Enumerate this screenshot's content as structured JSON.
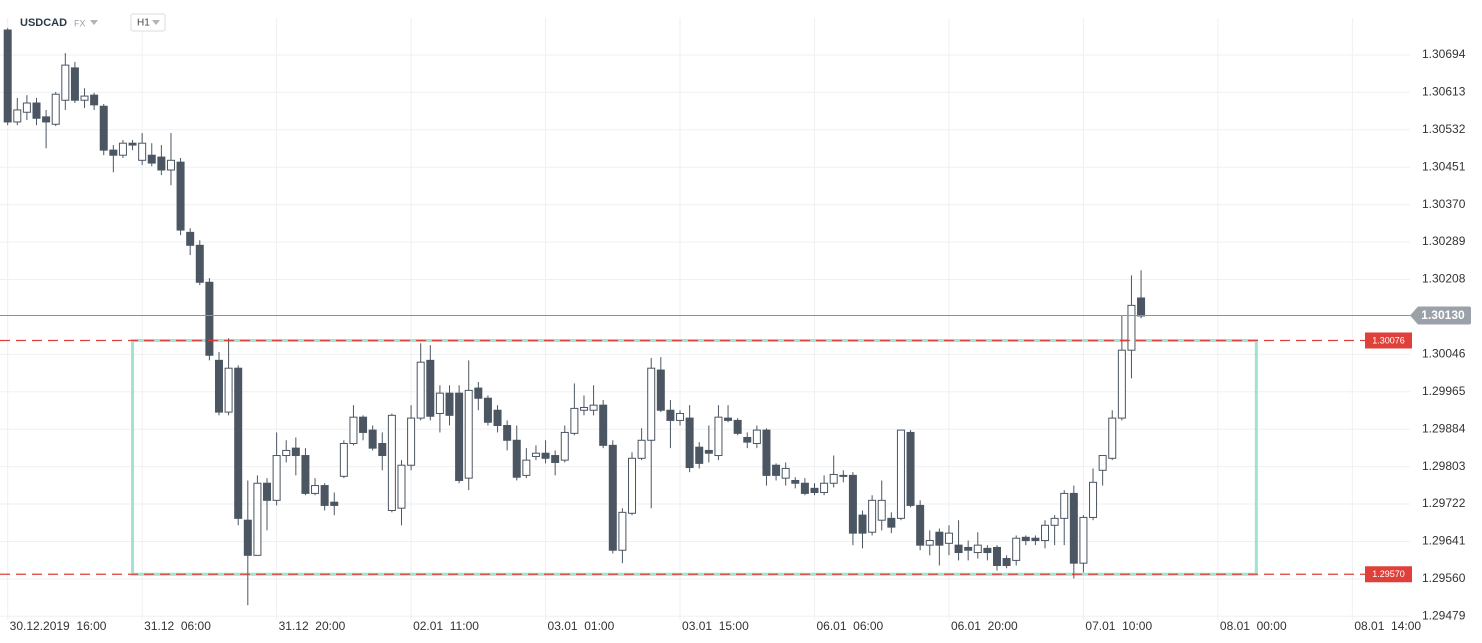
{
  "chart_data": {
    "type": "candlestick",
    "symbol": "USDCAD",
    "market": "FX",
    "timeframe": "H1",
    "ylim": [
      1.29471,
      1.30774
    ],
    "xlim": [
      -0.8,
      146
    ],
    "yticks": [
      1.30694,
      1.30613,
      1.30532,
      1.30451,
      {
        "value": 1.3037,
        "label": "1.30370"
      },
      1.30289,
      1.30208,
      1.30046,
      1.29965,
      1.29884,
      1.29803,
      1.29722,
      1.29641,
      {
        "value": 1.2956,
        "label": "1.29560"
      },
      1.29479
    ],
    "xticks": [
      {
        "value": 0,
        "label": "30.12.2019  16:00"
      },
      {
        "value": 14,
        "label": "31.12  06:00"
      },
      {
        "value": 28,
        "label": "31.12  20:00"
      },
      {
        "value": 42,
        "label": "02.01  11:00"
      },
      {
        "value": 56,
        "label": "03.01  01:00"
      },
      {
        "value": 70,
        "label": "03.01  15:00"
      },
      {
        "value": 84,
        "label": "06.01  06:00"
      },
      {
        "value": 98,
        "label": "06.01  20:00"
      },
      {
        "value": 112,
        "label": "07.01  10:00"
      },
      {
        "value": 126,
        "label": "08.01  00:00"
      },
      {
        "value": 140,
        "label": "08.01  14:00"
      }
    ],
    "grid": true,
    "bear_color": "#4b5662",
    "bull_color": "#ffffff",
    "last_price": {
      "value": 1.3013,
      "label": "1.30130",
      "color": "#9aa1a8"
    },
    "levels": [
      {
        "value": 1.30076,
        "label": "1.30076",
        "color": "#e0403a"
      },
      {
        "value": 1.2957,
        "label": "1.29570",
        "color": "#e0403a"
      }
    ],
    "box": {
      "start": 13,
      "end": 130,
      "color": "#a2e3cf"
    },
    "open": [
      1.30748,
      1.30549,
      1.3057,
      1.3059,
      1.3056,
      1.30544,
      1.30596,
      1.30666,
      1.30596,
      1.30607,
      1.30583,
      1.30488,
      1.30477,
      1.30503,
      1.30466,
      1.30477,
      1.30473,
      1.30445,
      1.30462,
      1.3031,
      1.30282,
      1.30202,
      1.30033,
      1.29921,
      1.30016,
      1.29687,
      1.29611,
      1.29767,
      1.2973,
      1.29827,
      1.29843,
      1.29827,
      1.29745,
      1.29762,
      1.29726,
      1.29782,
      1.29853,
      1.2991,
      1.29882,
      1.29853,
      1.29708,
      1.29713,
      1.29806,
      1.29908,
      1.30033,
      1.29918,
      1.29962,
      1.29962,
      1.29778,
      1.29973,
      1.29951,
      1.29925,
      1.29892,
      1.2986,
      1.29784,
      1.29825,
      1.29832,
      1.29827,
      1.29817,
      1.29875,
      1.29925,
      1.29925,
      1.29936,
      1.29849,
      1.29622,
      1.29702,
      1.29821,
      1.2986,
      1.30012,
      1.29925,
      1.29903,
      1.29908,
      1.29845,
      1.29838,
      1.29827,
      1.29908,
      1.29903,
      1.29866,
      1.29853,
      1.29882,
      1.29806,
      1.29778,
      1.29773,
      1.29767,
      1.29756,
      1.29747,
      1.29767,
      1.29784,
      1.29784,
      1.29698,
      1.29661,
      1.29687,
      1.29691,
      1.29691,
      1.29877,
      1.29719,
      1.29633,
      1.29661,
      1.29637,
      1.29633,
      1.29628,
      1.29617,
      1.29626,
      1.29628,
      1.29604,
      1.296,
      1.2965,
      1.29648,
      1.29643,
      1.29676,
      1.29691,
      1.29745,
      1.29594,
      1.29693,
      1.29795,
      1.29821,
      1.29908,
      1.30055,
      1.30168
    ],
    "high": [
      1.30752,
      1.30601,
      1.30607,
      1.30601,
      1.30575,
      1.30614,
      1.30698,
      1.30679,
      1.30622,
      1.30612,
      1.30588,
      1.30499,
      1.3051,
      1.3051,
      1.30525,
      1.30503,
      1.30499,
      1.30525,
      1.30471,
      1.30319,
      1.30293,
      1.30211,
      1.30051,
      1.30081,
      1.30022,
      1.29773,
      1.29784,
      1.29778,
      1.29877,
      1.2986,
      1.29866,
      1.29843,
      1.29778,
      1.29767,
      1.29747,
      1.2986,
      1.29936,
      1.29914,
      1.29892,
      1.29877,
      1.29918,
      1.29817,
      1.29936,
      1.3007,
      1.30066,
      1.29979,
      1.29979,
      1.29979,
      1.30033,
      1.29986,
      1.29957,
      1.29936,
      1.29903,
      1.29892,
      1.29843,
      1.29849,
      1.2986,
      1.29838,
      1.29892,
      1.29983,
      1.29957,
      1.29979,
      1.29947,
      1.2986,
      1.29713,
      1.29834,
      1.29886,
      1.30038,
      1.3004,
      1.29947,
      1.29925,
      1.29936,
      1.29856,
      1.29892,
      1.29936,
      1.29936,
      1.29908,
      1.29877,
      1.29892,
      1.29886,
      1.2981,
      1.29812,
      1.2978,
      1.29778,
      1.29767,
      1.29784,
      1.29827,
      1.29795,
      1.29791,
      1.29708,
      1.29741,
      1.29773,
      1.29704,
      1.29882,
      1.29882,
      1.2973,
      1.29665,
      1.29669,
      1.29676,
      1.29687,
      1.29643,
      1.29661,
      1.29633,
      1.29633,
      1.29611,
      1.29654,
      1.29654,
      1.29654,
      1.29687,
      1.29698,
      1.29752,
      1.29762,
      1.29698,
      1.29799,
      1.29827,
      1.29925,
      1.30131,
      1.30217,
      1.30228
    ],
    "low": [
      1.30542,
      1.30542,
      1.30553,
      1.30542,
      1.30492,
      1.3054,
      1.30575,
      1.3059,
      1.30579,
      1.30575,
      1.30477,
      1.3044,
      1.30471,
      1.30488,
      1.30456,
      1.30453,
      1.30434,
      1.30412,
      1.30304,
      1.30261,
      1.30196,
      1.30033,
      1.29914,
      1.29914,
      1.29676,
      1.29503,
      1.29611,
      1.29665,
      1.29719,
      1.29812,
      1.29784,
      1.29741,
      1.29741,
      1.29708,
      1.29698,
      1.29778,
      1.29849,
      1.2986,
      1.29838,
      1.29795,
      1.29704,
      1.29676,
      1.29795,
      1.29903,
      1.29903,
      1.29877,
      1.29892,
      1.29767,
      1.29752,
      1.29925,
      1.29892,
      1.29877,
      1.29838,
      1.29773,
      1.29778,
      1.29817,
      1.2981,
      1.29784,
      1.29812,
      1.29871,
      1.29914,
      1.29914,
      1.29843,
      1.29615,
      1.29594,
      1.29698,
      1.29817,
      1.29713,
      1.29921,
      1.29843,
      1.29892,
      1.29791,
      1.29799,
      1.29812,
      1.29817,
      1.29899,
      1.29871,
      1.29843,
      1.29843,
      1.29762,
      1.29773,
      1.29762,
      1.29756,
      1.29741,
      1.29741,
      1.29741,
      1.29758,
      1.29769,
      1.29633,
      1.29626,
      1.29654,
      1.29665,
      1.29659,
      1.29687,
      1.29715,
      1.29622,
      1.29611,
      1.29589,
      1.29611,
      1.296,
      1.296,
      1.29604,
      1.296,
      1.29578,
      1.29583,
      1.29589,
      1.29633,
      1.29633,
      1.29626,
      1.29633,
      1.29633,
      1.29561,
      1.29574,
      1.29687,
      1.29762,
      1.29817,
      1.29903,
      1.29994,
      1.30124
    ],
    "close": [
      1.30549,
      1.30575,
      1.3059,
      1.30557,
      1.30549,
      1.30609,
      1.30672,
      1.30596,
      1.30605,
      1.30586,
      1.30488,
      1.30477,
      1.30503,
      1.30499,
      1.30503,
      1.3046,
      1.30445,
      1.30466,
      1.30315,
      1.30282,
      1.30202,
      1.30044,
      1.29921,
      1.30016,
      1.29691,
      1.29611,
      1.29767,
      1.2973,
      1.29827,
      1.29838,
      1.29827,
      1.29745,
      1.29762,
      1.29719,
      1.29719,
      1.29853,
      1.2991,
      1.29877,
      1.29843,
      1.29827,
      1.29914,
      1.29806,
      1.29908,
      1.30029,
      1.29912,
      1.29962,
      1.29914,
      1.29773,
      1.29968,
      1.29951,
      1.29899,
      1.29892,
      1.2986,
      1.2978,
      1.29817,
      1.29832,
      1.29821,
      1.29812,
      1.29877,
      1.29929,
      1.29931,
      1.29936,
      1.29849,
      1.29622,
      1.29704,
      1.29821,
      1.2986,
      1.30016,
      1.29925,
      1.29903,
      1.29918,
      1.29801,
      1.2981,
      1.29832,
      1.2991,
      1.29903,
      1.29875,
      1.29856,
      1.29882,
      1.29784,
      1.29784,
      1.29799,
      1.29767,
      1.29745,
      1.29747,
      1.29767,
      1.29786,
      1.29782,
      1.29659,
      1.29659,
      1.2973,
      1.2973,
      1.29672,
      1.29882,
      1.29719,
      1.29633,
      1.29643,
      1.29633,
      1.29659,
      1.29617,
      1.29622,
      1.29633,
      1.29617,
      1.29589,
      1.29589,
      1.29648,
      1.29643,
      1.29643,
      1.29676,
      1.29691,
      1.29745,
      1.29594,
      1.29693,
      1.29769,
      1.29827,
      1.29908,
      1.30055,
      1.30152,
      1.30129
    ]
  }
}
